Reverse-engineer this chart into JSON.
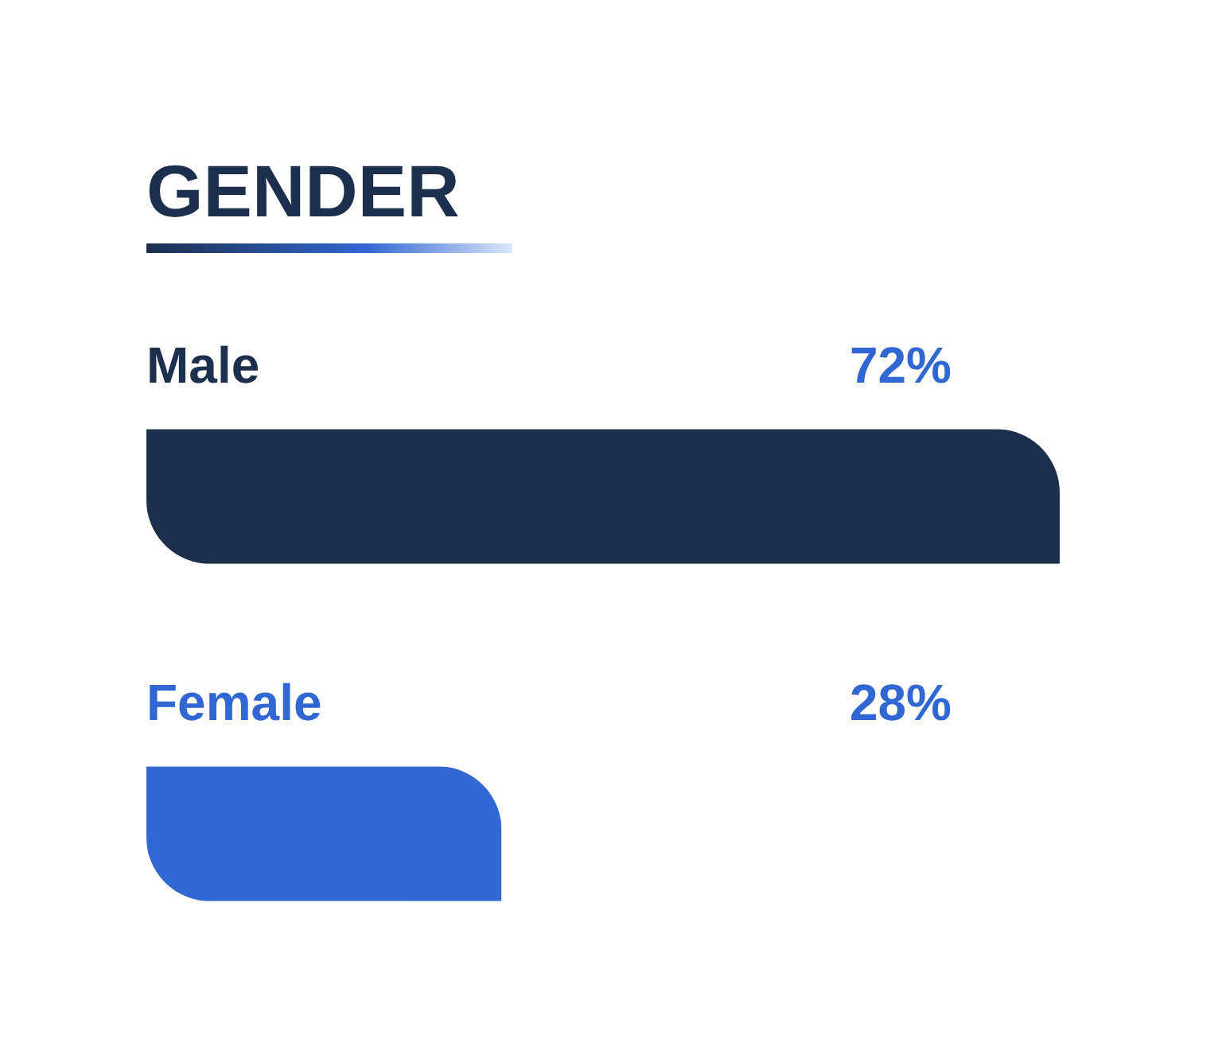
{
  "chart_data": {
    "type": "bar",
    "orientation": "horizontal",
    "title": "GENDER",
    "categories": [
      "Male",
      "Female"
    ],
    "values": [
      72,
      28
    ],
    "colors": [
      "#1c2f4d",
      "#3167d2"
    ],
    "value_labels": [
      "72%",
      "28%"
    ],
    "legend": false
  }
}
